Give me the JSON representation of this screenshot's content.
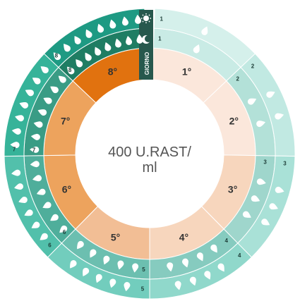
{
  "center_label": {
    "line1": "400 U.RAST/",
    "line2": "ml"
  },
  "day_band_label": "GIORNO",
  "icons": {
    "day": "sun-icon",
    "night": "moon-icon",
    "dose": "drop-icon"
  },
  "colors": {
    "day_1": "#fbe7db",
    "day_2": "#fbe7db",
    "day_3": "#f7d6bd",
    "day_4": "#f7d6bd",
    "day_5": "#f2be95",
    "day_6": "#eda35d",
    "day_7": "#eda35d",
    "day_8": "#e1720f",
    "night_ring_light": "#7dd4c7",
    "day_ring_light": "#a7ded5",
    "ring_dark": "#1e9a83",
    "header_dark": "#27584d"
  },
  "days": [
    {
      "label": "1°",
      "day_drops": "1",
      "night_drops": "1"
    },
    {
      "label": "2°",
      "day_drops": "2",
      "night_drops": "2"
    },
    {
      "label": "3°",
      "day_drops": "3",
      "night_drops": "3"
    },
    {
      "label": "4°",
      "day_drops": "4",
      "night_drops": "4"
    },
    {
      "label": "5°",
      "day_drops": "5",
      "night_drops": "5"
    },
    {
      "label": "6°",
      "day_drops": "6",
      "night_drops": "6"
    },
    {
      "label": "7°",
      "day_drops": "7",
      "night_drops": "7"
    },
    {
      "label": "8°",
      "day_drops": "8",
      "night_drops": "8"
    }
  ]
}
